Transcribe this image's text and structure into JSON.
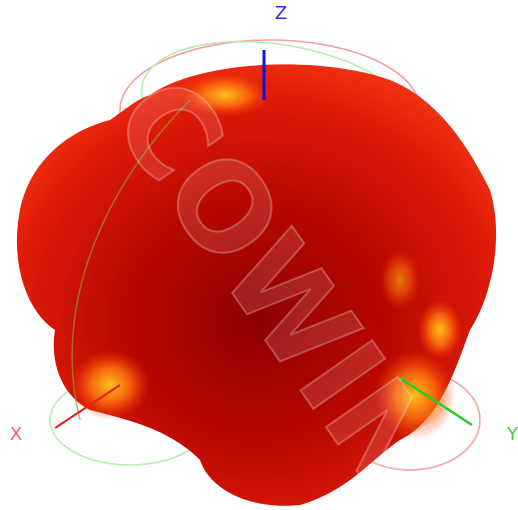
{
  "axes": {
    "z": "Z",
    "x": "X",
    "y": "Y"
  },
  "watermark": "COWIN"
}
